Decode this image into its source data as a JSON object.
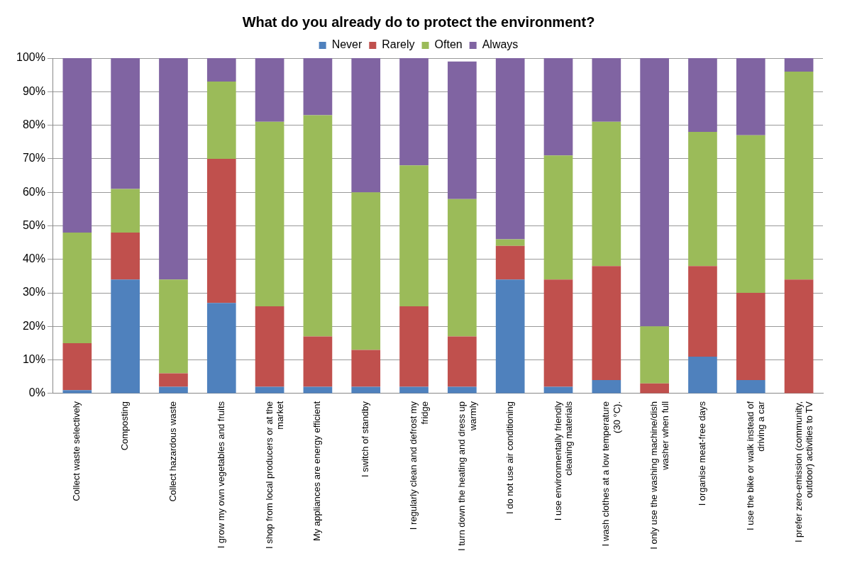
{
  "chart_data": {
    "type": "bar",
    "stacked": true,
    "title": "What do you already do to protect the environment?",
    "categories": [
      "Collect waste selectively",
      "Composting",
      "Collect hazardous waste",
      "I grow my own vegetables and fruits",
      "I shop from local producers or at the market",
      "My appliances are energy efficient",
      "I switch of standby",
      "I regularly clean and defrost my fridge",
      "I turn down the heating and dress up warmly",
      "I do not use air conditioning",
      "I use environmentally friendly cleaning materials",
      "I wash clothes at a low temperature (30 °C).",
      "I only use the washing machine/dish washer when full",
      "I organise meat-free days",
      "I use the bike or walk instead of driving a car",
      "I prefer zero-emission (community, outdoor) activities to TV"
    ],
    "series": [
      {
        "name": "Never",
        "color": "#4f81bd",
        "values": [
          1,
          34,
          2,
          27,
          2,
          2,
          2,
          2,
          2,
          34,
          2,
          4,
          0,
          11,
          4,
          0
        ]
      },
      {
        "name": "Rarely",
        "color": "#c0504d",
        "values": [
          14,
          14,
          4,
          43,
          24,
          15,
          11,
          24,
          15,
          10,
          32,
          34,
          3,
          27,
          26,
          34
        ]
      },
      {
        "name": "Often",
        "color": "#9bbb59",
        "values": [
          33,
          13,
          28,
          23,
          55,
          66,
          47,
          42,
          41,
          2,
          37,
          43,
          17,
          40,
          47,
          62
        ]
      },
      {
        "name": "Always",
        "color": "#8064a2",
        "values": [
          52,
          39,
          66,
          7,
          19,
          17,
          40,
          32,
          41,
          54,
          29,
          19,
          80,
          22,
          23,
          4
        ]
      }
    ],
    "ylim": [
      0,
      100
    ],
    "yticks": [
      {
        "value": 0,
        "label": "0%"
      },
      {
        "value": 10,
        "label": "10%"
      },
      {
        "value": 20,
        "label": "20%"
      },
      {
        "value": 30,
        "label": "30%"
      },
      {
        "value": 40,
        "label": "40%"
      },
      {
        "value": 50,
        "label": "50%"
      },
      {
        "value": 60,
        "label": "60%"
      },
      {
        "value": 70,
        "label": "70%"
      },
      {
        "value": 80,
        "label": "80%"
      },
      {
        "value": 90,
        "label": "90%"
      },
      {
        "value": 100,
        "label": "100%"
      }
    ],
    "grid": "y",
    "legend": "top"
  }
}
